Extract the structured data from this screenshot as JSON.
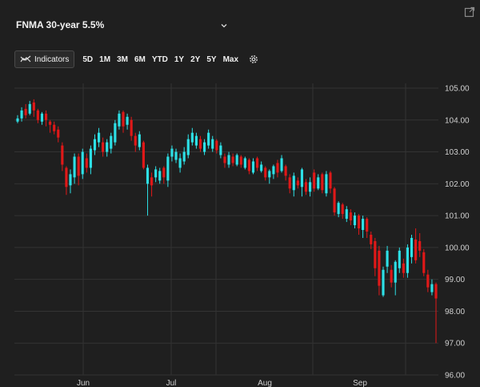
{
  "header": {
    "title": "FNMA 30-year 5.5%",
    "chevron_icon": "chevron-down-icon",
    "popout_icon": "external-link-icon"
  },
  "toolbar": {
    "indicators_label": "Indicators",
    "ranges": [
      "5D",
      "1M",
      "3M",
      "6M",
      "YTD",
      "1Y",
      "2Y",
      "5Y",
      "Max"
    ],
    "settings_icon": "gear-icon"
  },
  "colors": {
    "background": "#1f1f1f",
    "up": "#2de0e6",
    "down": "#e01818",
    "grid": "#333333"
  },
  "chart_data": {
    "type": "candlestick",
    "x_labels": [
      "Jun",
      "Jul",
      "Aug",
      "Sep"
    ],
    "y_ticks": [
      "105.00",
      "104.00",
      "103.00",
      "102.00",
      "101.00",
      "100.00",
      "99.00",
      "98.00",
      "97.00",
      "96.00"
    ],
    "ylim": [
      96,
      105.3
    ],
    "grid": true,
    "candles": [
      {
        "o": 103.95,
        "c": 104.05,
        "h": 104.15,
        "l": 103.9,
        "d": "up"
      },
      {
        "o": 104.05,
        "c": 104.3,
        "h": 104.4,
        "l": 103.95,
        "d": "up"
      },
      {
        "o": 104.35,
        "c": 104.15,
        "h": 104.5,
        "l": 104.05,
        "d": "down"
      },
      {
        "o": 104.2,
        "c": 104.5,
        "h": 104.6,
        "l": 104.15,
        "d": "up"
      },
      {
        "o": 104.55,
        "c": 104.3,
        "h": 104.65,
        "l": 104.1,
        "d": "down"
      },
      {
        "o": 104.3,
        "c": 104.0,
        "h": 104.35,
        "l": 103.9,
        "d": "down"
      },
      {
        "o": 103.95,
        "c": 104.2,
        "h": 104.25,
        "l": 103.85,
        "d": "up"
      },
      {
        "o": 104.2,
        "c": 104.0,
        "h": 104.3,
        "l": 103.8,
        "d": "down"
      },
      {
        "o": 103.95,
        "c": 103.85,
        "h": 104.0,
        "l": 103.6,
        "d": "down"
      },
      {
        "o": 103.85,
        "c": 103.65,
        "h": 103.95,
        "l": 103.55,
        "d": "down"
      },
      {
        "o": 103.7,
        "c": 103.45,
        "h": 103.8,
        "l": 103.3,
        "d": "down"
      },
      {
        "o": 103.2,
        "c": 102.6,
        "h": 103.3,
        "l": 102.4,
        "d": "down"
      },
      {
        "o": 102.5,
        "c": 101.9,
        "h": 102.55,
        "l": 101.65,
        "d": "down"
      },
      {
        "o": 101.95,
        "c": 102.3,
        "h": 102.45,
        "l": 101.7,
        "d": "up"
      },
      {
        "o": 102.2,
        "c": 102.85,
        "h": 102.95,
        "l": 102.0,
        "d": "up"
      },
      {
        "o": 102.85,
        "c": 102.25,
        "h": 102.95,
        "l": 101.95,
        "d": "down"
      },
      {
        "o": 102.3,
        "c": 103.0,
        "h": 103.1,
        "l": 102.15,
        "d": "up"
      },
      {
        "o": 102.8,
        "c": 102.5,
        "h": 102.95,
        "l": 102.35,
        "d": "down"
      },
      {
        "o": 102.5,
        "c": 103.1,
        "h": 103.2,
        "l": 102.3,
        "d": "up"
      },
      {
        "o": 103.05,
        "c": 103.4,
        "h": 103.55,
        "l": 102.9,
        "d": "up"
      },
      {
        "o": 103.3,
        "c": 103.6,
        "h": 103.75,
        "l": 103.15,
        "d": "up"
      },
      {
        "o": 103.3,
        "c": 103.0,
        "h": 103.45,
        "l": 102.85,
        "d": "down"
      },
      {
        "o": 103.0,
        "c": 103.3,
        "h": 103.4,
        "l": 102.85,
        "d": "up"
      },
      {
        "o": 103.1,
        "c": 103.5,
        "h": 103.6,
        "l": 102.95,
        "d": "up"
      },
      {
        "o": 103.3,
        "c": 103.9,
        "h": 104.0,
        "l": 103.2,
        "d": "up"
      },
      {
        "o": 103.8,
        "c": 104.2,
        "h": 104.3,
        "l": 103.7,
        "d": "up"
      },
      {
        "o": 104.25,
        "c": 103.8,
        "h": 104.3,
        "l": 103.6,
        "d": "down"
      },
      {
        "o": 103.85,
        "c": 104.1,
        "h": 104.2,
        "l": 103.7,
        "d": "up"
      },
      {
        "o": 104.0,
        "c": 103.5,
        "h": 104.1,
        "l": 103.35,
        "d": "down"
      },
      {
        "o": 103.5,
        "c": 103.2,
        "h": 103.6,
        "l": 103.0,
        "d": "down"
      },
      {
        "o": 103.15,
        "c": 103.55,
        "h": 103.65,
        "l": 103.05,
        "d": "up"
      },
      {
        "o": 103.3,
        "c": 102.5,
        "h": 103.35,
        "l": 102.45,
        "d": "down"
      },
      {
        "o": 102.0,
        "c": 102.5,
        "h": 102.6,
        "l": 101.0,
        "d": "up"
      },
      {
        "o": 102.2,
        "c": 101.95,
        "h": 102.35,
        "l": 101.6,
        "d": "down"
      },
      {
        "o": 102.2,
        "c": 102.45,
        "h": 102.55,
        "l": 102.05,
        "d": "up"
      },
      {
        "o": 102.1,
        "c": 102.4,
        "h": 102.5,
        "l": 102.0,
        "d": "up"
      },
      {
        "o": 102.5,
        "c": 102.2,
        "h": 102.55,
        "l": 102.0,
        "d": "down"
      },
      {
        "o": 102.1,
        "c": 102.85,
        "h": 102.95,
        "l": 101.9,
        "d": "up"
      },
      {
        "o": 102.85,
        "c": 103.1,
        "h": 103.2,
        "l": 102.7,
        "d": "up"
      },
      {
        "o": 102.75,
        "c": 103.0,
        "h": 103.1,
        "l": 102.65,
        "d": "up"
      },
      {
        "o": 102.5,
        "c": 102.8,
        "h": 102.95,
        "l": 102.35,
        "d": "up"
      },
      {
        "o": 102.7,
        "c": 103.0,
        "h": 103.15,
        "l": 102.6,
        "d": "up"
      },
      {
        "o": 102.9,
        "c": 103.4,
        "h": 103.55,
        "l": 102.8,
        "d": "up"
      },
      {
        "o": 103.3,
        "c": 103.6,
        "h": 103.75,
        "l": 103.2,
        "d": "up"
      },
      {
        "o": 103.2,
        "c": 103.5,
        "h": 103.6,
        "l": 103.1,
        "d": "up"
      },
      {
        "o": 103.4,
        "c": 103.1,
        "h": 103.5,
        "l": 103.0,
        "d": "down"
      },
      {
        "o": 103.0,
        "c": 103.3,
        "h": 103.4,
        "l": 102.9,
        "d": "up"
      },
      {
        "o": 103.2,
        "c": 103.6,
        "h": 103.7,
        "l": 103.1,
        "d": "up"
      },
      {
        "o": 103.1,
        "c": 103.4,
        "h": 103.5,
        "l": 103.0,
        "d": "up"
      },
      {
        "o": 103.35,
        "c": 103.05,
        "h": 103.4,
        "l": 102.95,
        "d": "down"
      },
      {
        "o": 102.9,
        "c": 103.2,
        "h": 103.3,
        "l": 102.8,
        "d": "up"
      },
      {
        "o": 102.85,
        "c": 102.65,
        "h": 102.95,
        "l": 102.5,
        "d": "down"
      },
      {
        "o": 102.6,
        "c": 102.9,
        "h": 103.0,
        "l": 102.5,
        "d": "up"
      },
      {
        "o": 102.85,
        "c": 102.65,
        "h": 102.95,
        "l": 102.55,
        "d": "down"
      },
      {
        "o": 102.6,
        "c": 102.9,
        "h": 102.95,
        "l": 102.55,
        "d": "up"
      },
      {
        "o": 102.85,
        "c": 102.6,
        "h": 102.9,
        "l": 102.5,
        "d": "down"
      },
      {
        "o": 102.5,
        "c": 102.8,
        "h": 102.85,
        "l": 102.45,
        "d": "up"
      },
      {
        "o": 102.75,
        "c": 102.4,
        "h": 102.8,
        "l": 102.3,
        "d": "down"
      },
      {
        "o": 102.35,
        "c": 102.7,
        "h": 102.8,
        "l": 102.3,
        "d": "up"
      },
      {
        "o": 102.8,
        "c": 102.5,
        "h": 102.85,
        "l": 102.4,
        "d": "down"
      },
      {
        "o": 102.4,
        "c": 102.6,
        "h": 102.7,
        "l": 102.35,
        "d": "up"
      },
      {
        "o": 102.5,
        "c": 102.2,
        "h": 102.55,
        "l": 102.1,
        "d": "down"
      },
      {
        "o": 102.2,
        "c": 102.4,
        "h": 102.45,
        "l": 102.0,
        "d": "up"
      },
      {
        "o": 102.3,
        "c": 102.55,
        "h": 102.6,
        "l": 102.15,
        "d": "up"
      },
      {
        "o": 102.65,
        "c": 102.35,
        "h": 102.75,
        "l": 102.2,
        "d": "down"
      },
      {
        "o": 102.4,
        "c": 102.8,
        "h": 102.9,
        "l": 102.35,
        "d": "up"
      },
      {
        "o": 102.55,
        "c": 102.25,
        "h": 102.6,
        "l": 102.1,
        "d": "down"
      },
      {
        "o": 102.2,
        "c": 101.85,
        "h": 102.3,
        "l": 101.7,
        "d": "down"
      },
      {
        "o": 101.8,
        "c": 102.25,
        "h": 102.35,
        "l": 101.6,
        "d": "up"
      },
      {
        "o": 102.1,
        "c": 101.95,
        "h": 102.2,
        "l": 101.85,
        "d": "down"
      },
      {
        "o": 101.9,
        "c": 102.45,
        "h": 102.5,
        "l": 101.6,
        "d": "up"
      },
      {
        "o": 102.05,
        "c": 101.75,
        "h": 102.15,
        "l": 101.65,
        "d": "down"
      },
      {
        "o": 101.75,
        "c": 102.05,
        "h": 102.2,
        "l": 101.6,
        "d": "up"
      },
      {
        "o": 102.35,
        "c": 101.85,
        "h": 102.45,
        "l": 101.75,
        "d": "down"
      },
      {
        "o": 101.85,
        "c": 102.2,
        "h": 102.3,
        "l": 101.8,
        "d": "up"
      },
      {
        "o": 102.3,
        "c": 101.8,
        "h": 102.35,
        "l": 101.7,
        "d": "down"
      },
      {
        "o": 101.7,
        "c": 102.3,
        "h": 102.4,
        "l": 101.6,
        "d": "up"
      },
      {
        "o": 102.35,
        "c": 101.85,
        "h": 102.4,
        "l": 101.7,
        "d": "down"
      },
      {
        "o": 101.85,
        "c": 101.1,
        "h": 101.9,
        "l": 101.0,
        "d": "down"
      },
      {
        "o": 101.05,
        "c": 101.4,
        "h": 101.45,
        "l": 100.95,
        "d": "up"
      },
      {
        "o": 101.35,
        "c": 101.05,
        "h": 101.4,
        "l": 100.9,
        "d": "down"
      },
      {
        "o": 100.9,
        "c": 101.2,
        "h": 101.3,
        "l": 100.8,
        "d": "up"
      },
      {
        "o": 101.1,
        "c": 100.85,
        "h": 101.2,
        "l": 100.7,
        "d": "down"
      },
      {
        "o": 100.7,
        "c": 101.0,
        "h": 101.1,
        "l": 100.6,
        "d": "up"
      },
      {
        "o": 101.0,
        "c": 100.6,
        "h": 101.05,
        "l": 100.4,
        "d": "down"
      },
      {
        "o": 100.55,
        "c": 100.9,
        "h": 101.0,
        "l": 100.3,
        "d": "up"
      },
      {
        "o": 100.9,
        "c": 100.5,
        "h": 100.95,
        "l": 100.3,
        "d": "down"
      },
      {
        "o": 100.4,
        "c": 100.1,
        "h": 100.5,
        "l": 99.95,
        "d": "down"
      },
      {
        "o": 100.2,
        "c": 99.35,
        "h": 100.3,
        "l": 99.1,
        "d": "down"
      },
      {
        "o": 99.9,
        "c": 98.8,
        "h": 100.05,
        "l": 98.5,
        "d": "down"
      },
      {
        "o": 98.5,
        "c": 99.3,
        "h": 99.4,
        "l": 98.45,
        "d": "up"
      },
      {
        "o": 99.4,
        "c": 99.9,
        "h": 100.05,
        "l": 99.2,
        "d": "up"
      },
      {
        "o": 99.3,
        "c": 98.9,
        "h": 99.45,
        "l": 98.75,
        "d": "down"
      },
      {
        "o": 98.9,
        "c": 99.55,
        "h": 99.6,
        "l": 98.5,
        "d": "up"
      },
      {
        "o": 99.35,
        "c": 99.9,
        "h": 100.0,
        "l": 99.2,
        "d": "up"
      },
      {
        "o": 99.5,
        "c": 99.2,
        "h": 99.65,
        "l": 99.05,
        "d": "down"
      },
      {
        "o": 99.2,
        "c": 100.0,
        "h": 100.1,
        "l": 99.05,
        "d": "up"
      },
      {
        "o": 99.7,
        "c": 100.3,
        "h": 100.4,
        "l": 99.5,
        "d": "up"
      },
      {
        "o": 100.25,
        "c": 99.6,
        "h": 100.6,
        "l": 99.5,
        "d": "down"
      },
      {
        "o": 100.2,
        "c": 99.9,
        "h": 100.45,
        "l": 99.7,
        "d": "down"
      },
      {
        "o": 99.85,
        "c": 99.2,
        "h": 99.95,
        "l": 99.1,
        "d": "down"
      },
      {
        "o": 99.15,
        "c": 98.75,
        "h": 99.3,
        "l": 98.6,
        "d": "down"
      },
      {
        "o": 98.6,
        "c": 98.85,
        "h": 99.0,
        "l": 98.5,
        "d": "up"
      },
      {
        "o": 98.85,
        "c": 98.4,
        "h": 98.9,
        "l": 97.0,
        "d": "down"
      }
    ]
  }
}
